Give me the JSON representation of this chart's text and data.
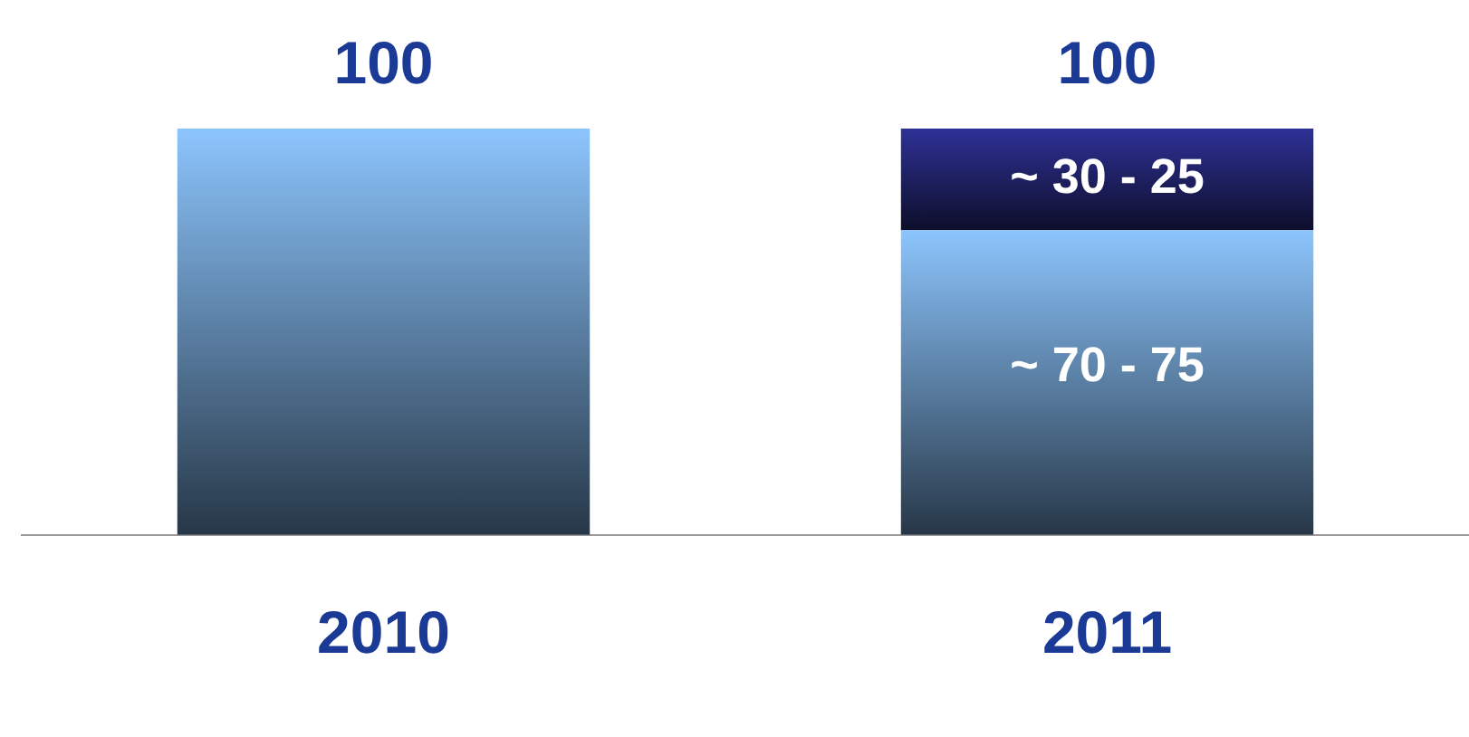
{
  "chart_data": {
    "type": "bar",
    "stacked": true,
    "categories": [
      "2010",
      "2011"
    ],
    "series": [
      {
        "color": "#8cc5fd",
        "values": [
          100,
          75
        ],
        "value_labels": [
          "100",
          "~ 70 - 75"
        ]
      },
      {
        "color": "#2e3196",
        "values": [
          null,
          25
        ],
        "value_labels": [
          null,
          "~ 30 - 25"
        ]
      }
    ],
    "totals": [
      null,
      "100"
    ],
    "grid": false,
    "legend": false
  }
}
